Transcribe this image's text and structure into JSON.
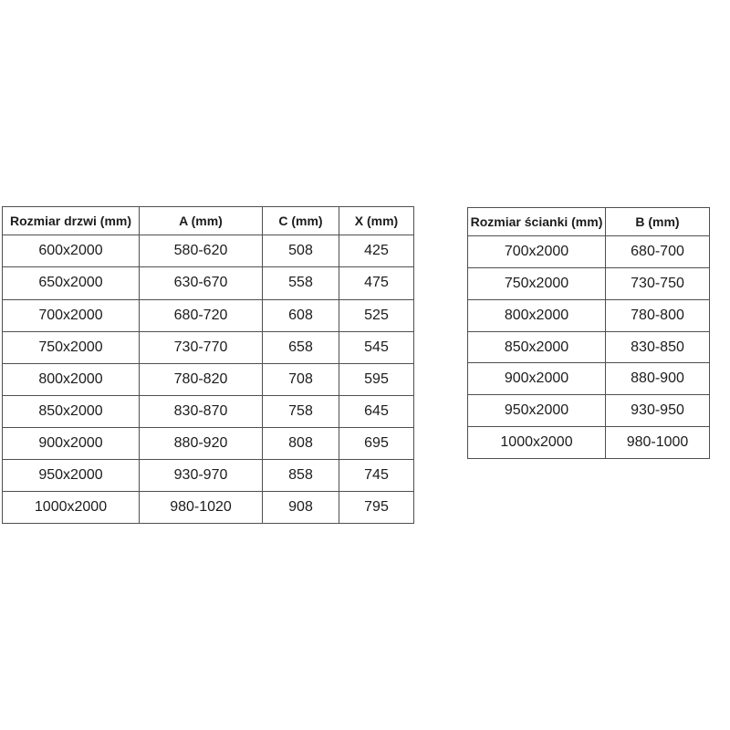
{
  "colors": {
    "background": "#ffffff",
    "table_border": "#4f4f4f",
    "text": "#1c1c1c"
  },
  "chart_data": [
    {
      "type": "table",
      "name": "door-sizes",
      "columns": [
        "Rozmiar drzwi (mm)",
        "A (mm)",
        "C (mm)",
        "X (mm)"
      ],
      "rows": [
        [
          "600x2000",
          "580-620",
          "508",
          "425"
        ],
        [
          "650x2000",
          "630-670",
          "558",
          "475"
        ],
        [
          "700x2000",
          "680-720",
          "608",
          "525"
        ],
        [
          "750x2000",
          "730-770",
          "658",
          "545"
        ],
        [
          "800x2000",
          "780-820",
          "708",
          "595"
        ],
        [
          "850x2000",
          "830-870",
          "758",
          "645"
        ],
        [
          "900x2000",
          "880-920",
          "808",
          "695"
        ],
        [
          "950x2000",
          "930-970",
          "858",
          "745"
        ],
        [
          "1000x2000",
          "980-1020",
          "908",
          "795"
        ]
      ]
    },
    {
      "type": "table",
      "name": "wall-sizes",
      "columns": [
        "Rozmiar ścianki (mm)",
        "B (mm)"
      ],
      "rows": [
        [
          "700x2000",
          "680-700"
        ],
        [
          "750x2000",
          "730-750"
        ],
        [
          "800x2000",
          "780-800"
        ],
        [
          "850x2000",
          "830-850"
        ],
        [
          "900x2000",
          "880-900"
        ],
        [
          "950x2000",
          "930-950"
        ],
        [
          "1000x2000",
          "980-1000"
        ]
      ]
    }
  ]
}
